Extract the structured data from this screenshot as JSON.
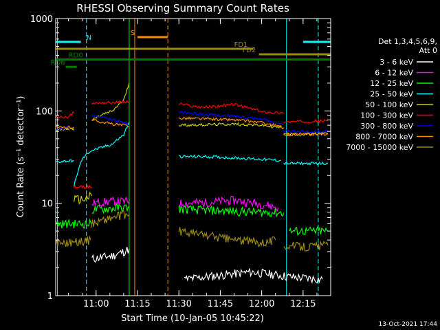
{
  "chart_data": {
    "type": "line",
    "title": "RHESSI Observing Summary Count Rates",
    "xlabel": "Start Time (10-Jan-05 10:45:22)",
    "ylabel": "Count Rate (s⁻¹ detector⁻¹)",
    "y_scale": "log",
    "ylim": [
      1,
      1000
    ],
    "y_ticks": [
      {
        "v": 1,
        "label": "1"
      },
      {
        "v": 10,
        "label": "10"
      },
      {
        "v": 100,
        "label": "100"
      },
      {
        "v": 1000,
        "label": "1000"
      }
    ],
    "xlim": [
      "10:45:22",
      "12:25:00"
    ],
    "x_ticks": [
      {
        "t": "11:00",
        "label": "11:00"
      },
      {
        "t": "11:15",
        "label": "11:15"
      },
      {
        "t": "11:30",
        "label": "11:30"
      },
      {
        "t": "11:45",
        "label": "11:45"
      },
      {
        "t": "12:00",
        "label": "12:00"
      },
      {
        "t": "12:15",
        "label": "12:15"
      }
    ],
    "legend_header": [
      "Det 1,3,4,5,6,9,",
      "Att 0"
    ],
    "legend_position": "right",
    "series": [
      {
        "name": "3 - 6 keV",
        "color": "#ffffff",
        "segments": [
          {
            "x": [
              "10:58:30",
              "11:02",
              "11:06",
              "11:10",
              "11:12"
            ],
            "y": [
              2.5,
              2.6,
              2.7,
              3,
              3.2
            ]
          },
          {
            "x": [
              "11:32",
              "11:40",
              "11:48",
              "11:56",
              "12:04",
              "12:10",
              "12:22"
            ],
            "y": [
              1.5,
              1.6,
              1.7,
              1.8,
              1.7,
              1.6,
              1.5
            ]
          }
        ]
      },
      {
        "name": "6 - 12 keV",
        "color": "#ff00ff",
        "segments": [
          {
            "x": [
              "10:58:30",
              "11:05",
              "11:12"
            ],
            "y": [
              10,
              10.5,
              10.5
            ]
          },
          {
            "x": [
              "11:30",
              "11:40",
              "11:50",
              "12:00",
              "12:06"
            ],
            "y": [
              10,
              10.2,
              10.8,
              9.8,
              9
            ]
          }
        ]
      },
      {
        "name": "12 - 25 keV",
        "color": "#00ff00",
        "segments": [
          {
            "x": [
              "10:45:22",
              "10:52",
              "10:58:30"
            ],
            "y": [
              6,
              6,
              6
            ]
          },
          {
            "x": [
              "10:58:30",
              "11:05",
              "11:12"
            ],
            "y": [
              8.5,
              8.8,
              9
            ]
          },
          {
            "x": [
              "11:30",
              "11:40",
              "11:50",
              "12:00",
              "12:08"
            ],
            "y": [
              8.7,
              8.4,
              8.2,
              8,
              7.9
            ]
          },
          {
            "x": [
              "12:10",
              "12:18",
              "12:24"
            ],
            "y": [
              5,
              5,
              5
            ]
          }
        ]
      },
      {
        "name": "25 - 50 keV",
        "color": "#00ffff",
        "segments": [
          {
            "x": [
              "10:45:22",
              "10:48",
              "10:52"
            ],
            "y": [
              28,
              28.5,
              29
            ]
          },
          {
            "x": [
              "10:52",
              "10:55",
              "10:58",
              "11:02",
              "11:06",
              "11:10",
              "11:12"
            ],
            "y": [
              15,
              30,
              37,
              40,
              44,
              55,
              75
            ]
          },
          {
            "x": [
              "11:30",
              "11:40",
              "11:50",
              "12:00",
              "12:07"
            ],
            "y": [
              32,
              32,
              31,
              30,
              29
            ]
          },
          {
            "x": [
              "12:08",
              "12:16",
              "12:24"
            ],
            "y": [
              27,
              27,
              27
            ]
          }
        ]
      },
      {
        "name": "50 - 100 keV",
        "color": "#cccc00",
        "segments": [
          {
            "x": [
              "10:45:22",
              "10:48",
              "10:52"
            ],
            "y": [
              62,
              63,
              64
            ]
          },
          {
            "x": [
              "10:52",
              "10:55",
              "10:58:30"
            ],
            "y": [
              11,
              11,
              12
            ]
          },
          {
            "x": [
              "10:58:30",
              "11:02",
              "11:06",
              "11:10",
              "11:12"
            ],
            "y": [
              80,
              90,
              100,
              130,
              200
            ]
          },
          {
            "x": [
              "11:30",
              "11:40",
              "11:50",
              "12:00",
              "12:07"
            ],
            "y": [
              70,
              71,
              72,
              70,
              66
            ]
          },
          {
            "x": [
              "12:08",
              "12:16",
              "12:24"
            ],
            "y": [
              56,
              56,
              57
            ]
          }
        ]
      },
      {
        "name": "100 - 300 keV",
        "color": "#ff0000",
        "segments": [
          {
            "x": [
              "10:45:22",
              "10:50",
              "10:52"
            ],
            "y": [
              85,
              86,
              96
            ]
          },
          {
            "x": [
              "10:52",
              "10:55",
              "10:58:30"
            ],
            "y": [
              15,
              15,
              15
            ]
          },
          {
            "x": [
              "10:58:30",
              "11:02",
              "11:06",
              "11:10",
              "11:12"
            ],
            "y": [
              120,
              123,
              123,
              125,
              125
            ]
          },
          {
            "x": [
              "11:30",
              "11:35",
              "11:40",
              "11:45",
              "11:50",
              "11:55",
              "12:00",
              "12:08"
            ],
            "y": [
              120,
              112,
              110,
              113,
              118,
              108,
              98,
              94
            ]
          },
          {
            "x": [
              "12:08",
              "12:16",
              "12:24"
            ],
            "y": [
              76,
              77,
              78
            ]
          }
        ]
      },
      {
        "name": "300 - 800 keV",
        "color": "#0000ff",
        "segments": [
          {
            "x": [
              "10:45:22",
              "10:50",
              "10:52"
            ],
            "y": [
              64,
              65,
              65
            ]
          },
          {
            "x": [
              "10:58:30",
              "11:02",
              "11:06",
              "11:10",
              "11:12"
            ],
            "y": [
              90,
              85,
              80,
              75,
              70
            ]
          },
          {
            "x": [
              "11:30",
              "11:40",
              "11:50",
              "12:00",
              "12:08"
            ],
            "y": [
              97,
              91,
              88,
              82,
              70
            ]
          },
          {
            "x": [
              "12:08",
              "12:16",
              "12:24"
            ],
            "y": [
              60,
              60,
              60
            ]
          }
        ]
      },
      {
        "name": "800 - 7000 keV",
        "color": "#ff8c00",
        "segments": [
          {
            "x": [
              "10:45:22",
              "10:50",
              "10:52"
            ],
            "y": [
              66,
              66,
              67
            ]
          },
          {
            "x": [
              "10:58:30",
              "11:02",
              "11:06",
              "11:10",
              "11:12"
            ],
            "y": [
              80,
              76,
              72,
              70,
              68
            ]
          },
          {
            "x": [
              "11:30",
              "11:40",
              "11:50",
              "12:00",
              "12:08"
            ],
            "y": [
              84,
              82,
              80,
              75,
              66
            ]
          },
          {
            "x": [
              "12:08",
              "12:16",
              "12:24"
            ],
            "y": [
              55,
              56,
              56
            ]
          }
        ]
      },
      {
        "name": "7000 - 15000 keV",
        "color": "#9c8a14",
        "segments": [
          {
            "x": [
              "10:45:22",
              "10:52",
              "10:58"
            ],
            "y": [
              3.8,
              3.8,
              4
            ]
          },
          {
            "x": [
              "10:58",
              "11:02",
              "11:06",
              "11:10",
              "11:12"
            ],
            "y": [
              6,
              6.5,
              7,
              7.5,
              7.5
            ]
          },
          {
            "x": [
              "11:30",
              "11:40",
              "11:50",
              "12:00",
              "12:05"
            ],
            "y": [
              5,
              4.5,
              4,
              3.8,
              4
            ]
          },
          {
            "x": [
              "12:08",
              "12:16",
              "12:24"
            ],
            "y": [
              3.5,
              3.4,
              3.5
            ]
          }
        ]
      }
    ],
    "flag_bars": [
      {
        "label": "N",
        "color": "#00ffff",
        "level": 560,
        "segments": [
          [
            "10:45:22",
            "10:54:30"
          ],
          [
            "12:15",
            "12:25"
          ]
        ]
      },
      {
        "label": "S",
        "color": "#ff8c00",
        "level": 630,
        "segments": [
          [
            "11:15",
            "11:26"
          ]
        ]
      },
      {
        "label": "FD1",
        "color": "#9c8a14",
        "level": 470,
        "segments": [
          [
            "10:45:22",
            "11:57"
          ]
        ]
      },
      {
        "label": "FD2",
        "color": "#9c8a14",
        "level": 410,
        "segments": [
          [
            "11:59",
            "12:25"
          ]
        ]
      },
      {
        "label": "RD0",
        "color": "#008000",
        "level": 360,
        "segments": [
          [
            "10:45:22",
            "12:25"
          ]
        ]
      },
      {
        "label": "RD6",
        "color": "#008000",
        "level": 300,
        "segments": [
          [
            "10:49",
            "10:53"
          ]
        ]
      }
    ],
    "vlines": [
      {
        "t": "10:46",
        "color": "#00ffff",
        "style": "solid"
      },
      {
        "t": "10:56:30",
        "color": "#00ffff",
        "style": "dashed"
      },
      {
        "t": "11:12",
        "color": "#00ff00",
        "style": "solid"
      },
      {
        "t": "11:14",
        "color": "#ff8c00",
        "style": "solid"
      },
      {
        "t": "11:26",
        "color": "#ff8c00",
        "style": "dashed"
      },
      {
        "t": "12:09",
        "color": "#00ffff",
        "style": "solid"
      },
      {
        "t": "12:20:30",
        "color": "#00ffff",
        "style": "dashed"
      }
    ],
    "timestamp": "13-Oct-2021 17:44"
  }
}
